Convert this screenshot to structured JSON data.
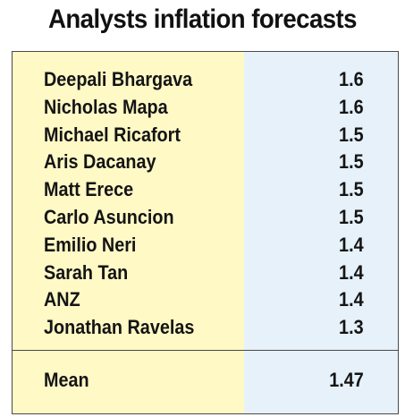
{
  "chart_data": {
    "type": "table",
    "title": "Analysts inflation forecasts",
    "rows": [
      {
        "name": "Deepali Bhargava",
        "value": "1.6"
      },
      {
        "name": "Nicholas Mapa",
        "value": "1.6"
      },
      {
        "name": "Michael Ricafort",
        "value": "1.5"
      },
      {
        "name": "Aris Dacanay",
        "value": "1.5"
      },
      {
        "name": "Matt Erece",
        "value": "1.5"
      },
      {
        "name": "Carlo Asuncion",
        "value": "1.5"
      },
      {
        "name": "Emilio Neri",
        "value": "1.4"
      },
      {
        "name": "Sarah Tan",
        "value": "1.4"
      },
      {
        "name": "ANZ",
        "value": "1.4"
      },
      {
        "name": "Jonathan Ravelas",
        "value": "1.3"
      }
    ],
    "summary": {
      "name": "Mean",
      "value": "1.47"
    },
    "colors": {
      "name_column": "#fff9c6",
      "value_column": "#e6f1fa",
      "border": "#4a4a4a",
      "text": "#141414"
    }
  }
}
